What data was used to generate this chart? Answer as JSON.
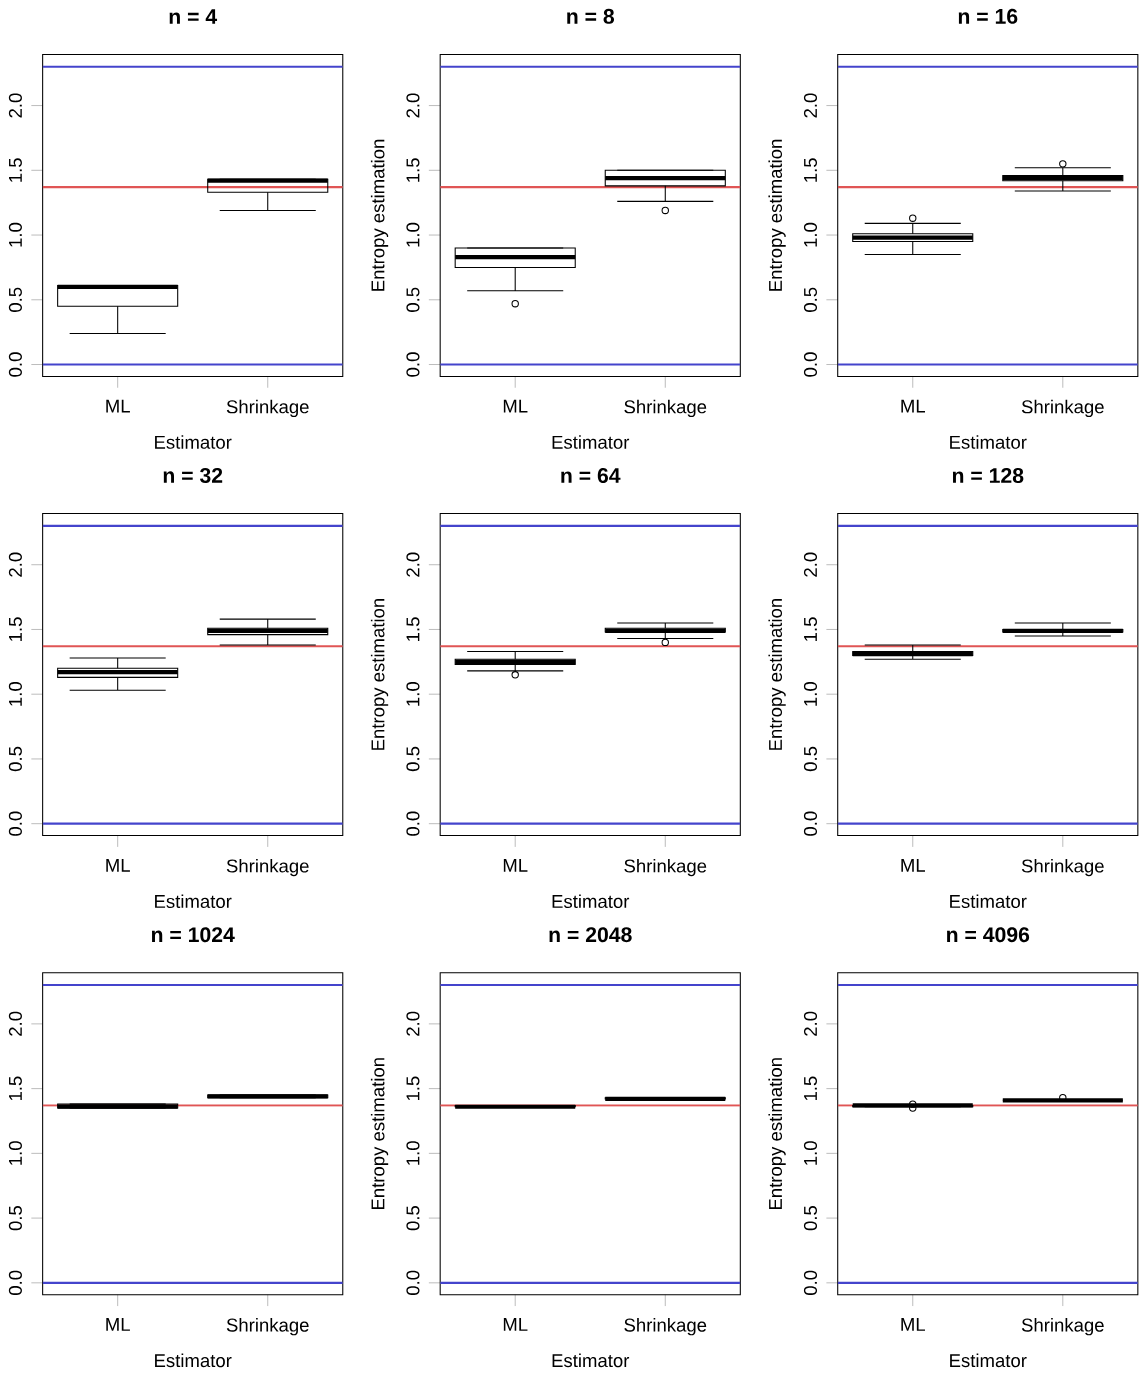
{
  "chart_data": [
    {
      "type": "box",
      "title": "n = 4",
      "xlabel": "Estimator",
      "categories": [
        "ML",
        "Shrinkage"
      ],
      "ylim": [
        -0.092,
        2.395
      ],
      "yticks": [
        {
          "value": 0,
          "label": "0.0"
        },
        {
          "value": 0.5,
          "label": "0.5"
        },
        {
          "value": 1,
          "label": "1.0"
        },
        {
          "value": 1.5,
          "label": "1.5"
        },
        {
          "value": 2,
          "label": "2.0"
        }
      ],
      "boxes": [
        {
          "low": 0.24,
          "q1": 0.45,
          "median": 0.6,
          "q3": 0.61,
          "high": 0.61
        },
        {
          "low": 1.19,
          "q1": 1.33,
          "median": 1.42,
          "q3": 1.43,
          "high": 1.43
        }
      ],
      "ref_lines": [
        {
          "axis": "y",
          "value": 0,
          "color": "#4444cc"
        },
        {
          "axis": "y",
          "value": 2.3,
          "color": "#4444cc"
        },
        {
          "axis": "y",
          "value": 1.37,
          "color": "#e05555"
        }
      ]
    },
    {
      "type": "box",
      "title": "n = 8",
      "xlabel": "Estimator",
      "ylabel": "Entropy estimation",
      "categories": [
        "ML",
        "Shrinkage"
      ],
      "ylim": [
        -0.092,
        2.395
      ],
      "yticks": [
        {
          "value": 0,
          "label": "0.0"
        },
        {
          "value": 0.5,
          "label": "0.5"
        },
        {
          "value": 1,
          "label": "1.0"
        },
        {
          "value": 1.5,
          "label": "1.5"
        },
        {
          "value": 2,
          "label": "2.0"
        }
      ],
      "boxes": [
        {
          "low": 0.57,
          "q1": 0.75,
          "median": 0.83,
          "q3": 0.9,
          "high": 0.9,
          "outliers": [
            0.47
          ]
        },
        {
          "low": 1.26,
          "q1": 1.38,
          "median": 1.44,
          "q3": 1.5,
          "high": 1.5,
          "outliers": [
            1.19
          ]
        }
      ],
      "ref_lines": [
        {
          "axis": "y",
          "value": 0,
          "color": "#4444cc"
        },
        {
          "axis": "y",
          "value": 2.3,
          "color": "#4444cc"
        },
        {
          "axis": "y",
          "value": 1.37,
          "color": "#e05555"
        }
      ]
    },
    {
      "type": "box",
      "title": "n = 16",
      "xlabel": "Estimator",
      "ylabel": "Entropy estimation",
      "categories": [
        "ML",
        "Shrinkage"
      ],
      "ylim": [
        -0.092,
        2.395
      ],
      "yticks": [
        {
          "value": 0,
          "label": "0.0"
        },
        {
          "value": 0.5,
          "label": "0.5"
        },
        {
          "value": 1,
          "label": "1.0"
        },
        {
          "value": 1.5,
          "label": "1.5"
        },
        {
          "value": 2,
          "label": "2.0"
        }
      ],
      "boxes": [
        {
          "low": 0.85,
          "q1": 0.95,
          "median": 0.98,
          "q3": 1.01,
          "high": 1.09,
          "outliers": [
            1.13
          ]
        },
        {
          "low": 1.34,
          "q1": 1.42,
          "median": 1.44,
          "q3": 1.46,
          "high": 1.52,
          "outliers": [
            1.55
          ]
        }
      ],
      "ref_lines": [
        {
          "axis": "y",
          "value": 0,
          "color": "#4444cc"
        },
        {
          "axis": "y",
          "value": 2.3,
          "color": "#4444cc"
        },
        {
          "axis": "y",
          "value": 1.37,
          "color": "#e05555"
        }
      ]
    },
    {
      "type": "box",
      "title": "n = 32",
      "xlabel": "Estimator",
      "categories": [
        "ML",
        "Shrinkage"
      ],
      "ylim": [
        -0.092,
        2.395
      ],
      "yticks": [
        {
          "value": 0,
          "label": "0.0"
        },
        {
          "value": 0.5,
          "label": "0.5"
        },
        {
          "value": 1,
          "label": "1.0"
        },
        {
          "value": 1.5,
          "label": "1.5"
        },
        {
          "value": 2,
          "label": "2.0"
        }
      ],
      "boxes": [
        {
          "low": 1.03,
          "q1": 1.13,
          "median": 1.17,
          "q3": 1.2,
          "high": 1.28
        },
        {
          "low": 1.38,
          "q1": 1.46,
          "median": 1.49,
          "q3": 1.51,
          "high": 1.58
        }
      ],
      "ref_lines": [
        {
          "axis": "y",
          "value": 0,
          "color": "#4444cc"
        },
        {
          "axis": "y",
          "value": 2.3,
          "color": "#4444cc"
        },
        {
          "axis": "y",
          "value": 1.37,
          "color": "#e05555"
        }
      ]
    },
    {
      "type": "box",
      "title": "n = 64",
      "xlabel": "Estimator",
      "ylabel": "Entropy estimation",
      "categories": [
        "ML",
        "Shrinkage"
      ],
      "ylim": [
        -0.092,
        2.395
      ],
      "yticks": [
        {
          "value": 0,
          "label": "0.0"
        },
        {
          "value": 0.5,
          "label": "0.5"
        },
        {
          "value": 1,
          "label": "1.0"
        },
        {
          "value": 1.5,
          "label": "1.5"
        },
        {
          "value": 2,
          "label": "2.0"
        }
      ],
      "boxes": [
        {
          "low": 1.18,
          "q1": 1.23,
          "median": 1.25,
          "q3": 1.27,
          "high": 1.33,
          "outliers": [
            1.15
          ]
        },
        {
          "low": 1.43,
          "q1": 1.48,
          "median": 1.49,
          "q3": 1.51,
          "high": 1.55,
          "outliers": [
            1.4
          ]
        }
      ],
      "ref_lines": [
        {
          "axis": "y",
          "value": 0,
          "color": "#4444cc"
        },
        {
          "axis": "y",
          "value": 2.3,
          "color": "#4444cc"
        },
        {
          "axis": "y",
          "value": 1.37,
          "color": "#e05555"
        }
      ]
    },
    {
      "type": "box",
      "title": "n = 128",
      "xlabel": "Estimator",
      "ylabel": "Entropy estimation",
      "categories": [
        "ML",
        "Shrinkage"
      ],
      "ylim": [
        -0.092,
        2.395
      ],
      "yticks": [
        {
          "value": 0,
          "label": "0.0"
        },
        {
          "value": 0.5,
          "label": "0.5"
        },
        {
          "value": 1,
          "label": "1.0"
        },
        {
          "value": 1.5,
          "label": "1.5"
        },
        {
          "value": 2,
          "label": "2.0"
        }
      ],
      "boxes": [
        {
          "low": 1.27,
          "q1": 1.3,
          "median": 1.31,
          "q3": 1.33,
          "high": 1.38
        },
        {
          "low": 1.45,
          "q1": 1.48,
          "median": 1.49,
          "q3": 1.5,
          "high": 1.55
        }
      ],
      "ref_lines": [
        {
          "axis": "y",
          "value": 0,
          "color": "#4444cc"
        },
        {
          "axis": "y",
          "value": 2.3,
          "color": "#4444cc"
        },
        {
          "axis": "y",
          "value": 1.37,
          "color": "#e05555"
        }
      ]
    },
    {
      "type": "box",
      "title": "n = 1024",
      "xlabel": "Estimator",
      "categories": [
        "ML",
        "Shrinkage"
      ],
      "ylim": [
        -0.092,
        2.395
      ],
      "yticks": [
        {
          "value": 0,
          "label": "0.0"
        },
        {
          "value": 0.5,
          "label": "0.5"
        },
        {
          "value": 1,
          "label": "1.0"
        },
        {
          "value": 1.5,
          "label": "1.5"
        },
        {
          "value": 2,
          "label": "2.0"
        }
      ],
      "boxes": [
        {
          "low": 1.35,
          "q1": 1.35,
          "median": 1.36,
          "q3": 1.38,
          "high": 1.38
        },
        {
          "low": 1.43,
          "q1": 1.43,
          "median": 1.44,
          "q3": 1.45,
          "high": 1.45
        }
      ],
      "ref_lines": [
        {
          "axis": "y",
          "value": 0,
          "color": "#4444cc"
        },
        {
          "axis": "y",
          "value": 2.3,
          "color": "#4444cc"
        },
        {
          "axis": "y",
          "value": 1.37,
          "color": "#e05555"
        }
      ]
    },
    {
      "type": "box",
      "title": "n = 2048",
      "xlabel": "Estimator",
      "ylabel": "Entropy estimation",
      "categories": [
        "ML",
        "Shrinkage"
      ],
      "ylim": [
        -0.092,
        2.395
      ],
      "yticks": [
        {
          "value": 0,
          "label": "0.0"
        },
        {
          "value": 0.5,
          "label": "0.5"
        },
        {
          "value": 1,
          "label": "1.0"
        },
        {
          "value": 1.5,
          "label": "1.5"
        },
        {
          "value": 2,
          "label": "2.0"
        }
      ],
      "boxes": [
        {
          "low": 1.36,
          "q1": 1.36,
          "median": 1.36,
          "q3": 1.37,
          "high": 1.37
        },
        {
          "low": 1.41,
          "q1": 1.42,
          "median": 1.42,
          "q3": 1.43,
          "high": 1.43
        }
      ],
      "ref_lines": [
        {
          "axis": "y",
          "value": 0,
          "color": "#4444cc"
        },
        {
          "axis": "y",
          "value": 2.3,
          "color": "#4444cc"
        },
        {
          "axis": "y",
          "value": 1.37,
          "color": "#e05555"
        }
      ]
    },
    {
      "type": "box",
      "title": "n = 4096",
      "xlabel": "Estimator",
      "ylabel": "Entropy estimation",
      "categories": [
        "ML",
        "Shrinkage"
      ],
      "ylim": [
        -0.092,
        2.395
      ],
      "yticks": [
        {
          "value": 0,
          "label": "0.0"
        },
        {
          "value": 0.5,
          "label": "0.5"
        },
        {
          "value": 1,
          "label": "1.0"
        },
        {
          "value": 1.5,
          "label": "1.5"
        },
        {
          "value": 2,
          "label": "2.0"
        }
      ],
      "boxes": [
        {
          "low": 1.36,
          "q1": 1.36,
          "median": 1.37,
          "q3": 1.37,
          "high": 1.37,
          "outliers": [
            1.35,
            1.38
          ]
        },
        {
          "low": 1.4,
          "q1": 1.41,
          "median": 1.41,
          "q3": 1.41,
          "high": 1.41,
          "outliers": [
            1.43
          ]
        }
      ],
      "ref_lines": [
        {
          "axis": "y",
          "value": 0,
          "color": "#4444cc"
        },
        {
          "axis": "y",
          "value": 2.3,
          "color": "#4444cc"
        },
        {
          "axis": "y",
          "value": 1.37,
          "color": "#e05555"
        }
      ]
    }
  ]
}
